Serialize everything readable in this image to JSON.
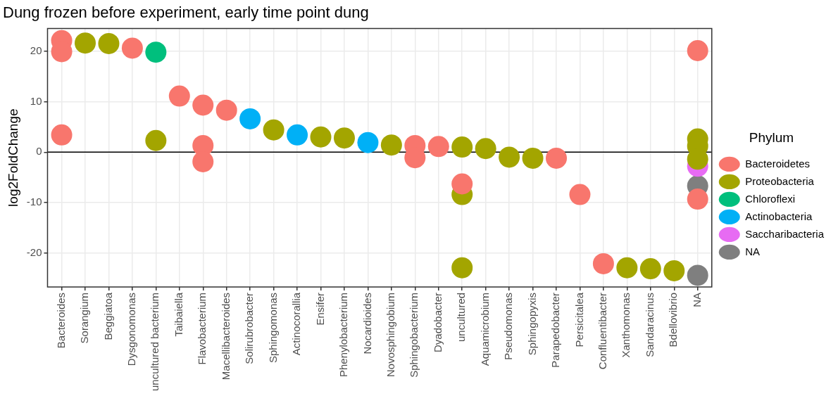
{
  "chart_data": {
    "type": "scatter",
    "title": "Dung frozen before experiment, early time point dung",
    "ylabel": "log2FoldChange",
    "legend_title": "Phylum",
    "categories": [
      "Bacteroides",
      "Sorangium",
      "Beggiatoa",
      "Dysgonomonas",
      "uncultured bacterium",
      "Taibaiella",
      "Flavobacterium",
      "Macellibacteroides",
      "Solirubrobacter",
      "Sphingomonas",
      "Actinocorallia",
      "Ensifer",
      "Phenylobacterium",
      "Nocardioides",
      "Novosphingobium",
      "Sphingobacterium",
      "Dyadobacter",
      "uncultured",
      "Aquamicrobium",
      "Pseudomonas",
      "Sphingopyxis",
      "Parapedobacter",
      "Persicitalea",
      "Confluentibacter",
      "Xanthomonas",
      "Sandaracinus",
      "Bdellovibrio",
      "NA"
    ],
    "series": [
      {
        "name": "Bacteroidetes",
        "color": "#f8766d",
        "x": [
          "Bacteroides",
          "Bacteroides",
          "Bacteroides",
          "Dysgonomonas",
          "Taibaiella",
          "Flavobacterium",
          "Flavobacterium",
          "Flavobacterium",
          "Macellibacteroides",
          "Sphingobacterium",
          "Sphingobacterium",
          "Dyadobacter",
          "uncultured",
          "Parapedobacter",
          "Persicitalea",
          "Confluentibacter",
          "NA",
          "NA"
        ],
        "values": [
          22.1,
          19.9,
          3.4,
          20.6,
          11.1,
          9.3,
          1.3,
          -1.9,
          8.3,
          1.3,
          -1.1,
          1.1,
          -6.3,
          -1.2,
          -8.4,
          -22.1,
          20.1,
          -9.3
        ]
      },
      {
        "name": "Proteobacteria",
        "color": "#a3a500",
        "x": [
          "Sorangium",
          "Beggiatoa",
          "uncultured bacterium",
          "Sphingomonas",
          "Ensifer",
          "Phenylobacterium",
          "Novosphingobium",
          "uncultured",
          "uncultured",
          "uncultured",
          "Aquamicrobium",
          "Pseudomonas",
          "Sphingopyxis",
          "Xanthomonas",
          "Sandaracinus",
          "Bdellovibrio",
          "NA",
          "NA",
          "NA"
        ],
        "values": [
          21.6,
          21.5,
          2.3,
          4.4,
          3.0,
          2.8,
          1.4,
          1.0,
          -8.4,
          -22.9,
          0.7,
          -1.0,
          -1.2,
          -22.9,
          -23.1,
          -23.5,
          2.6,
          1.2,
          -1.4
        ]
      },
      {
        "name": "Chloroflexi",
        "color": "#00bf7d",
        "x": [
          "uncultured bacterium"
        ],
        "values": [
          19.8
        ]
      },
      {
        "name": "Actinobacteria",
        "color": "#00b0f6",
        "x": [
          "Solirubrobacter",
          "Actinocorallia",
          "Nocardioides"
        ],
        "values": [
          6.6,
          3.4,
          1.9
        ]
      },
      {
        "name": "Saccharibacteria",
        "color": "#e76bf3",
        "x": [
          "NA"
        ],
        "values": [
          -2.8
        ]
      },
      {
        "name": "NA",
        "color": "#7f7f7f",
        "x": [
          "NA",
          "NA"
        ],
        "values": [
          -6.7,
          -24.4
        ]
      }
    ],
    "ylim": [
      -26.7,
      24.5
    ],
    "yticks": [
      -20,
      -10,
      0,
      10,
      20
    ],
    "grid": true,
    "legend": "right",
    "marker": "circle",
    "ref_lines": [
      {
        "axis": "y",
        "value": 0,
        "color": "#000000"
      }
    ]
  }
}
